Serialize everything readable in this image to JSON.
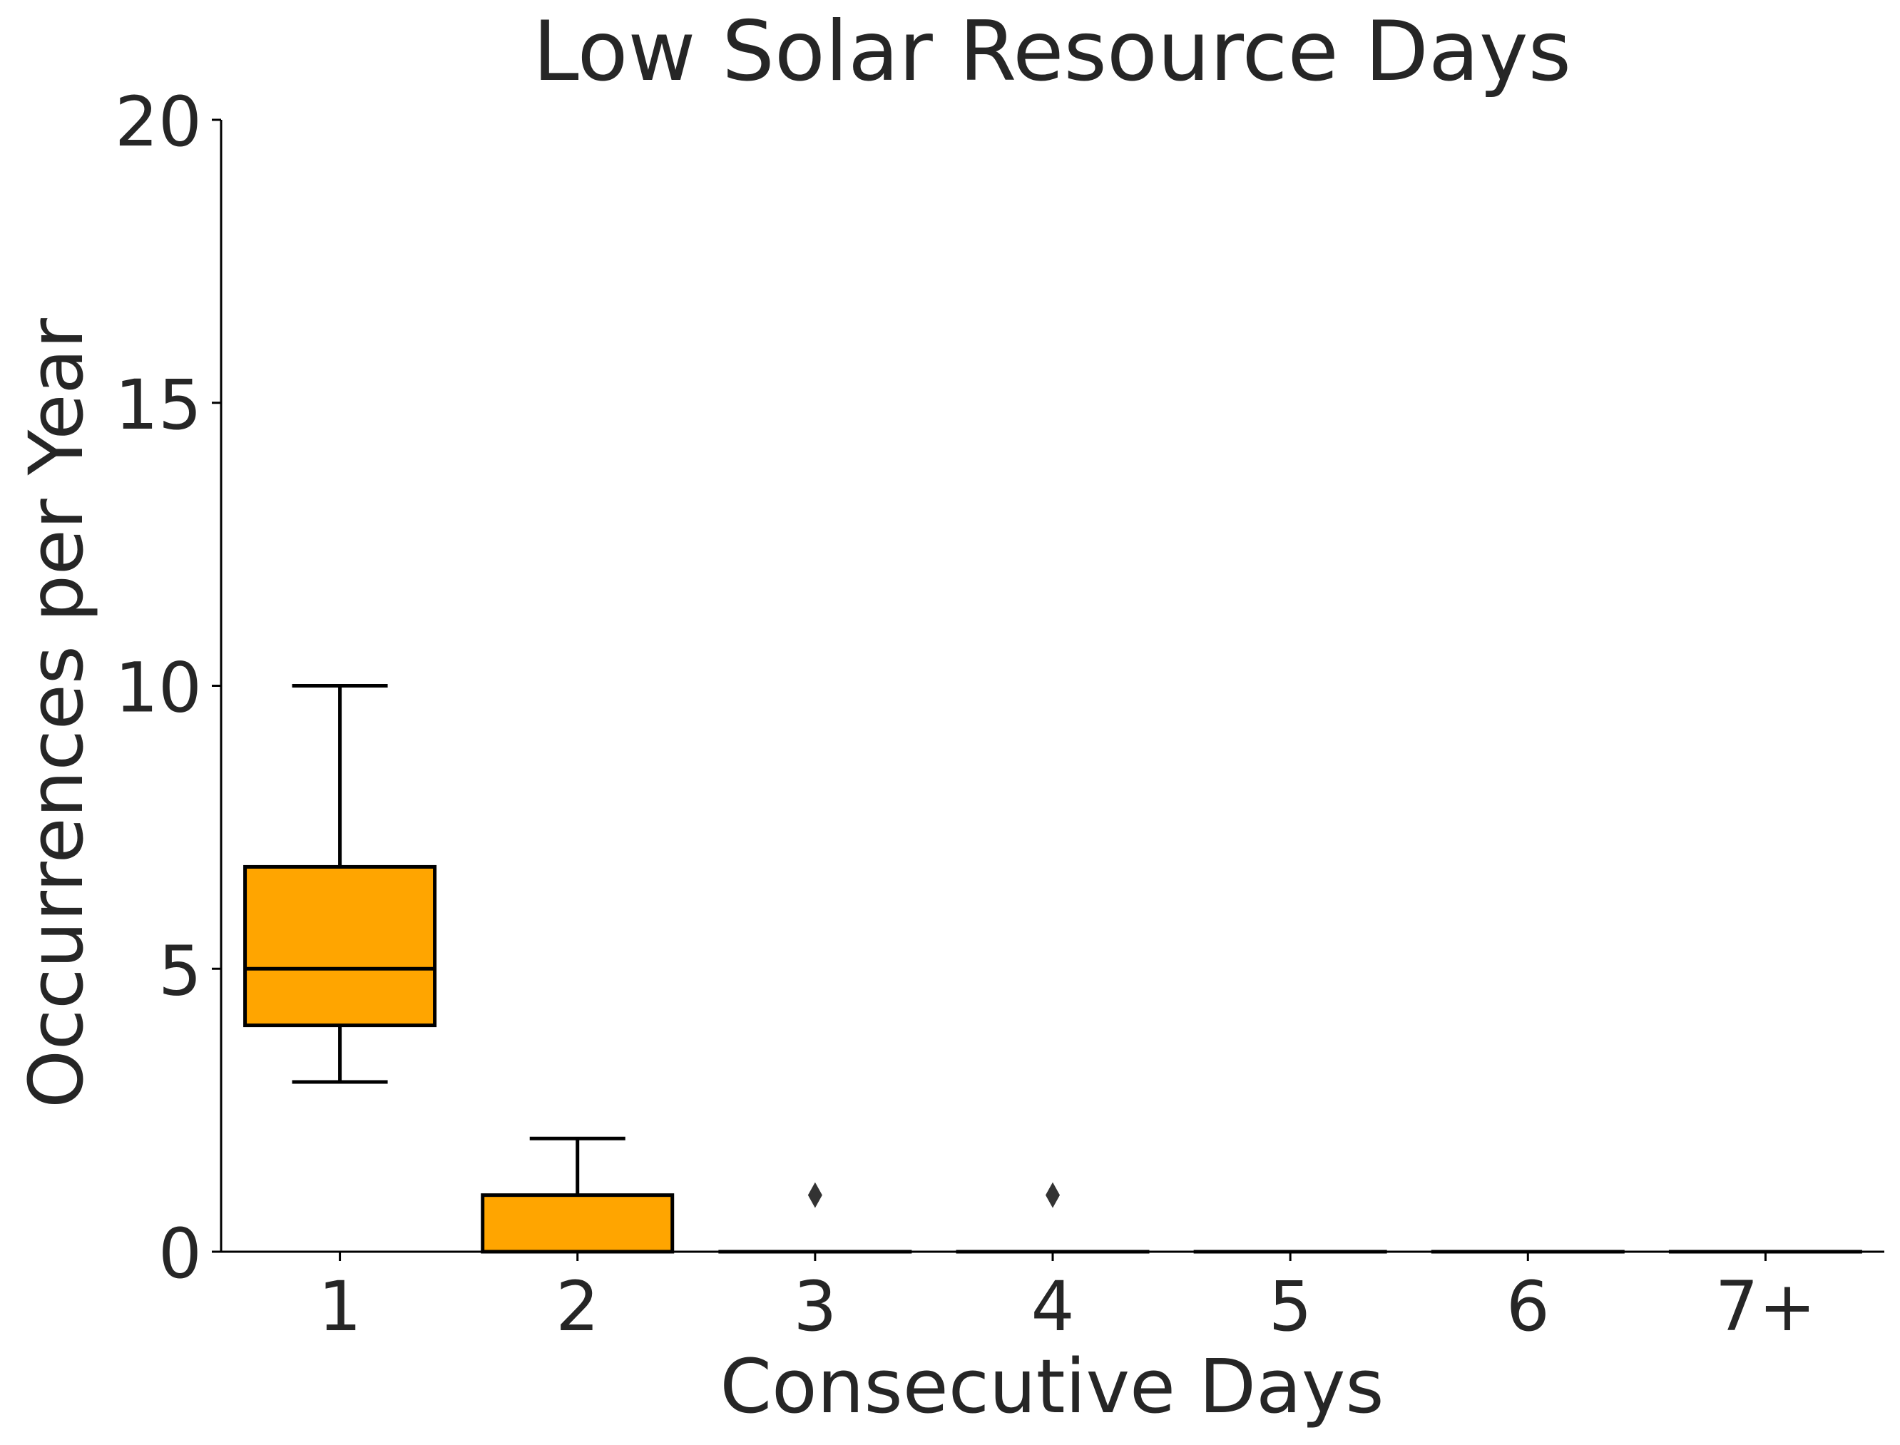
{
  "chart_data": {
    "type": "box",
    "title": "Low Solar Resource Days",
    "xlabel": "Consecutive Days",
    "ylabel": "Occurrences per Year",
    "categories": [
      "1",
      "2",
      "3",
      "4",
      "5",
      "6",
      "7+"
    ],
    "boxes": [
      {
        "category": "1",
        "whisker_low": 3,
        "q1": 4,
        "median": 5,
        "q3": 6.8,
        "whisker_high": 10,
        "outliers": []
      },
      {
        "category": "2",
        "whisker_low": 0,
        "q1": 0,
        "median": 0,
        "q3": 1,
        "whisker_high": 2,
        "outliers": []
      },
      {
        "category": "3",
        "whisker_low": 0,
        "q1": 0,
        "median": 0,
        "q3": 0,
        "whisker_high": 0,
        "outliers": [
          1
        ]
      },
      {
        "category": "4",
        "whisker_low": 0,
        "q1": 0,
        "median": 0,
        "q3": 0,
        "whisker_high": 0,
        "outliers": [
          1
        ]
      },
      {
        "category": "5",
        "whisker_low": 0,
        "q1": 0,
        "median": 0,
        "q3": 0,
        "whisker_high": 0,
        "outliers": []
      },
      {
        "category": "6",
        "whisker_low": 0,
        "q1": 0,
        "median": 0,
        "q3": 0,
        "whisker_high": 0,
        "outliers": []
      },
      {
        "category": "7+",
        "whisker_low": 0,
        "q1": 0,
        "median": 0,
        "q3": 0,
        "whisker_high": 0,
        "outliers": []
      }
    ],
    "ylim": [
      0,
      20
    ],
    "yticks": [
      0,
      5,
      10,
      15,
      20
    ],
    "ytick_labels": [
      "0",
      "5",
      "10",
      "15",
      "20"
    ],
    "grid": false,
    "box_color": "#FFA500",
    "line_color": "#000000",
    "text_color": "#262626"
  }
}
